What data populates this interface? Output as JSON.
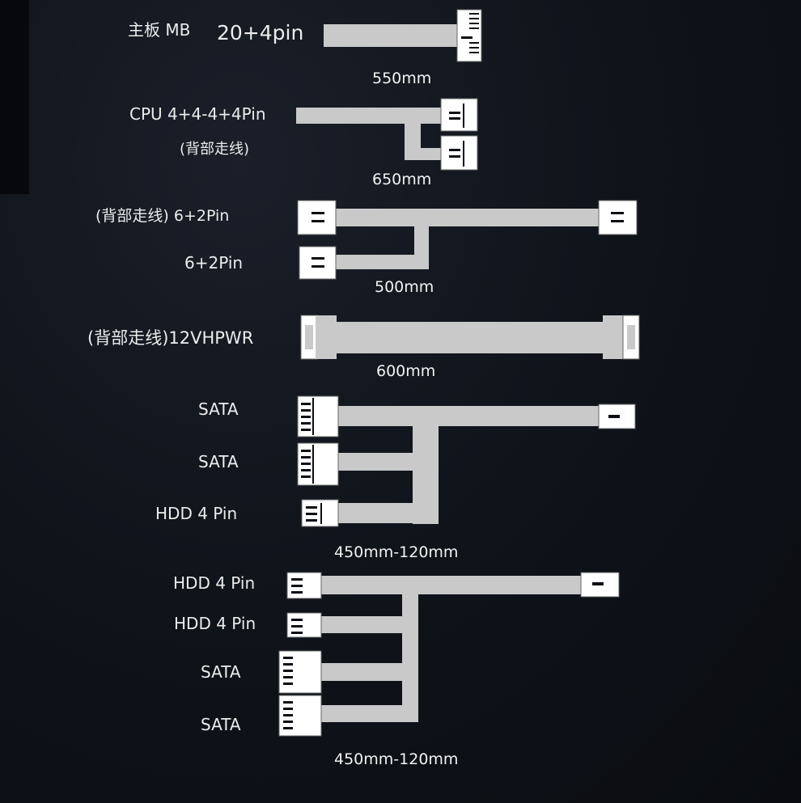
{
  "cables": [
    {
      "labels": [
        "主板 MB",
        "20+4pin"
      ],
      "length": "550mm"
    },
    {
      "labels": [
        "CPU 4+4-4+4Pin",
        "(背部走线)"
      ],
      "length": "650mm"
    },
    {
      "labels": [
        "(背部走线) 6+2Pin",
        "6+2Pin"
      ],
      "length": "500mm"
    },
    {
      "labels": [
        "(背部走线)12VHPWR"
      ],
      "length": "600mm"
    },
    {
      "labels": [
        "SATA",
        "SATA",
        "HDD 4 Pin"
      ],
      "length": "450mm-120mm"
    },
    {
      "labels": [
        "HDD 4 Pin",
        "HDD 4 Pin",
        "SATA",
        "SATA"
      ],
      "length": "450mm-120mm"
    }
  ],
  "colors": {
    "background": "#10141b",
    "cable": "#c9c9c9",
    "connector": "#ffffff"
  }
}
